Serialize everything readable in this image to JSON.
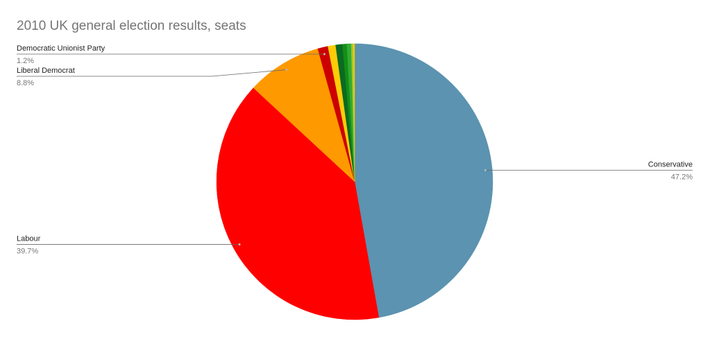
{
  "chart_data": {
    "type": "pie",
    "title": "2010 UK general election results, seats",
    "categories": [
      "Conservative",
      "Labour",
      "Liberal Democrat",
      "Democratic Unionist Party",
      null,
      null,
      null,
      null,
      null,
      null
    ],
    "values": [
      47.2,
      39.7,
      8.8,
      1.2,
      0.9,
      0.8,
      0.5,
      0.5,
      0.2,
      0.2
    ],
    "value_labels": [
      "47.2%",
      "39.7%",
      "8.8%",
      "1.2%",
      null,
      null,
      null,
      null,
      null,
      null
    ],
    "colors": [
      "#5b93b0",
      "#ff0000",
      "#ff9900",
      "#cc0000",
      "#fdcc08",
      "#0b6a23",
      "#138f13",
      "#33aa33",
      "#88cc44",
      "#f0c800"
    ]
  }
}
